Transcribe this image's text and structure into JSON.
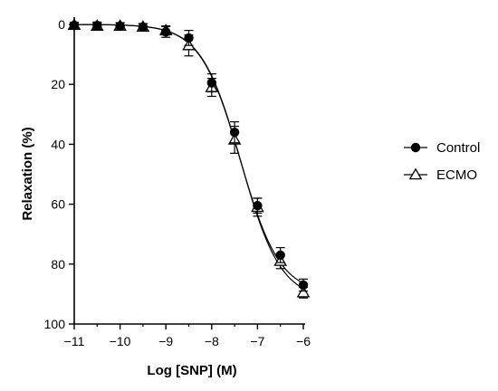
{
  "chart_data": {
    "type": "scatter",
    "xlabel": "Log [SNP] (M)",
    "ylabel": "Relaxation (%)",
    "xlim": [
      -11,
      -6
    ],
    "ylim": [
      0,
      100
    ],
    "y_inverted": true,
    "x_ticks": [
      -11,
      -10,
      -9,
      -8,
      -7,
      -6
    ],
    "x_tick_labels": [
      "−11",
      "−10",
      "−9",
      "−8",
      "−7",
      "−6"
    ],
    "y_ticks": [
      0,
      20,
      40,
      60,
      80,
      100
    ],
    "y_tick_labels": [
      "0",
      "20",
      "40",
      "60",
      "80",
      "100"
    ],
    "grid": false,
    "legend_position": "right",
    "series": [
      {
        "name": "Control",
        "marker": "filled-circle",
        "color": "#000000",
        "x": [
          -11,
          -10.5,
          -10,
          -9.5,
          -9,
          -8.5,
          -8,
          -7.5,
          -7,
          -6.5,
          -6
        ],
        "y": [
          0.3,
          0.4,
          0.6,
          0.9,
          2.5,
          4.5,
          19.5,
          36,
          60.5,
          77,
          87
        ],
        "err": [
          1.0,
          1.2,
          1.2,
          1.2,
          1.8,
          2.5,
          3.0,
          3.5,
          2.5,
          2.5,
          2.0
        ]
      },
      {
        "name": "ECMO",
        "marker": "open-triangle",
        "color": "#000000",
        "x": [
          -11,
          -10.5,
          -10,
          -9.5,
          -9,
          -8.5,
          -8,
          -7.5,
          -7,
          -6.5,
          -6
        ],
        "y": [
          0.2,
          0.5,
          0.5,
          0.8,
          2.0,
          7.0,
          21,
          38.5,
          61,
          79,
          89.5
        ],
        "err": [
          0.8,
          1.0,
          1.0,
          1.0,
          1.5,
          3.5,
          3.0,
          4.5,
          3.0,
          2.5,
          1.8
        ]
      }
    ],
    "fit_curves": [
      {
        "series": "Control",
        "top": 0,
        "bottom": 90,
        "logEC50": -7.38,
        "hill": 1.0
      },
      {
        "series": "ECMO",
        "top": 0,
        "bottom": 92,
        "logEC50": -7.36,
        "hill": 1.0
      }
    ]
  }
}
